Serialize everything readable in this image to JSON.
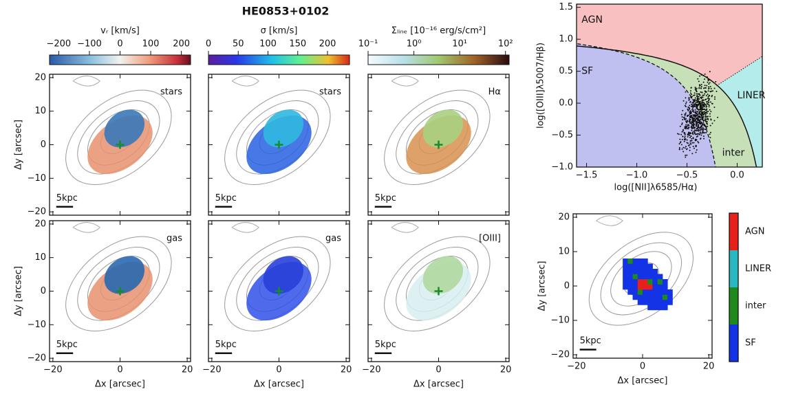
{
  "title": "HE0853+0102",
  "colorbars": [
    {
      "label": "vᵣ [km/s]",
      "lim": [
        -230,
        230
      ],
      "ticks": [
        {
          "value": -200,
          "label": "−200"
        },
        {
          "value": -100,
          "label": "−100"
        },
        0,
        100,
        200
      ]
    },
    {
      "label": "σ [km/s]",
      "lim": [
        0,
        237
      ],
      "ticks": [
        0,
        50,
        100,
        150,
        200
      ]
    },
    {
      "label": "Σₗᵢₙₑ [10⁻¹⁶ erg/s/cm²]",
      "log": true,
      "lim": [
        0.1,
        120
      ],
      "ticks": [
        {
          "value": 0.1,
          "label": "10⁻¹"
        },
        {
          "value": 1,
          "label": "10⁰"
        },
        {
          "value": 10,
          "label": "10¹"
        },
        {
          "value": 100,
          "label": "10²"
        }
      ]
    }
  ],
  "maps": [
    "stars",
    "stars",
    "Hα",
    "gas",
    "gas",
    "[OIII]"
  ],
  "map_axes": {
    "xlabel": "Δx [arcsec]",
    "ylabel": "Δy [arcsec]",
    "scalebar": "5kpc",
    "xlim": [
      -21,
      21
    ],
    "ylim": [
      -21,
      21
    ],
    "xticks": [
      {
        "value": -20,
        "label": "−20"
      },
      0,
      20
    ],
    "yticks": [
      20,
      10,
      0,
      {
        "value": -10,
        "label": "−10"
      },
      {
        "value": -20,
        "label": "−20"
      }
    ]
  },
  "bpt": {
    "xlabel": "log([NII]λ6585/Hα)",
    "ylabel": "log([OIII]λ5007/Hβ)",
    "xlim": [
      -1.6,
      0.25
    ],
    "ylim": [
      -1.0,
      1.55
    ],
    "xticks": [
      {
        "value": -1.5,
        "label": "−1.5"
      },
      {
        "value": -1.0,
        "label": "−1.0"
      },
      {
        "value": -0.5,
        "label": "−0.5"
      },
      {
        "value": 0.0,
        "label": "0.0"
      }
    ],
    "yticks": [
      {
        "value": -1.0,
        "label": "−1.0"
      },
      {
        "value": -0.5,
        "label": "−0.5"
      },
      {
        "value": 0.0,
        "label": "0.0"
      },
      {
        "value": 0.5,
        "label": "0.5"
      },
      {
        "value": 1.0,
        "label": "1.0"
      },
      {
        "value": 1.5,
        "label": "1.5"
      }
    ]
  },
  "classes": [
    {
      "name": "AGN",
      "color": "#e8201c"
    },
    {
      "name": "LINER",
      "color": "#2ab8c0"
    },
    {
      "name": "inter",
      "color": "#1e8a1e"
    },
    {
      "name": "SF",
      "color": "#1432e6"
    }
  ]
}
